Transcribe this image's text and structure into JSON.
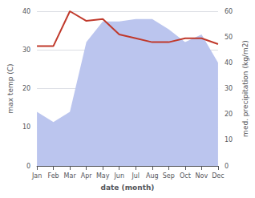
{
  "chart_data": {
    "type": "line",
    "categories": [
      "Jan",
      "Feb",
      "Mar",
      "Apr",
      "May",
      "Jun",
      "Jul",
      "Aug",
      "Sep",
      "Oct",
      "Nov",
      "Dec"
    ],
    "series": [
      {
        "type": "area",
        "color": "#bbc5ee",
        "axis": "y2",
        "values": [
          21,
          17,
          21,
          48,
          56,
          56,
          57,
          57,
          53,
          48,
          51,
          40
        ]
      },
      {
        "type": "line",
        "color": "#c0392b",
        "values": [
          31,
          31,
          40,
          37.5,
          38,
          34,
          33,
          32,
          32,
          33,
          33,
          31.5
        ]
      }
    ],
    "xlabel": "date (month)",
    "ylabel": "max temp (C)",
    "y2label": "med. precipitation (kg/m2)",
    "ylim": [
      0,
      40
    ],
    "yticks": [
      0,
      10,
      20,
      30,
      40
    ],
    "y2lim": [
      0,
      60
    ],
    "y2ticks": [
      0,
      10,
      20,
      30,
      40,
      50,
      60
    ],
    "grid": true
  }
}
